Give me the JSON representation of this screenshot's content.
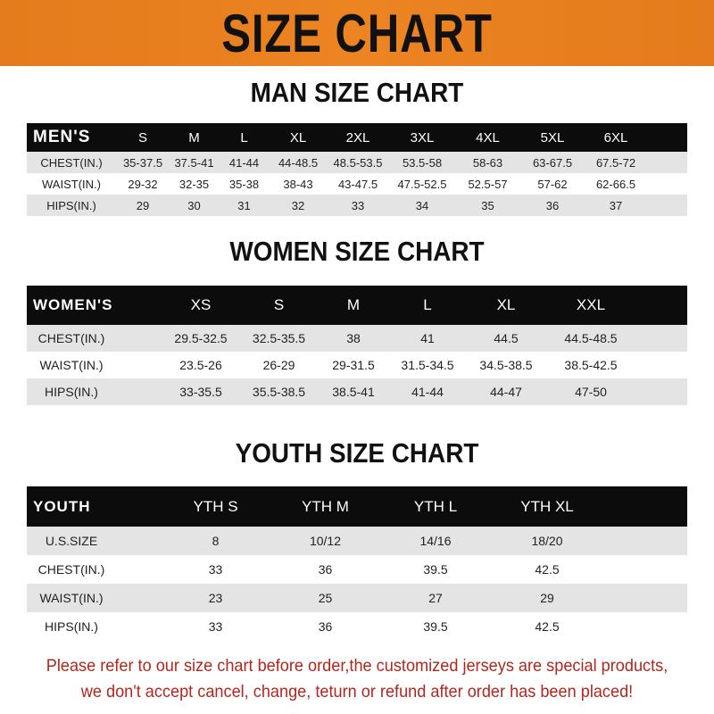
{
  "banner_title": "SIZE CHART",
  "tables": [
    {
      "id": "men",
      "title": "MAN SIZE CHART",
      "header_label": "MEN'S",
      "sizes": [
        "S",
        "M",
        "L",
        "XL",
        "2XL",
        "3XL",
        "4XL",
        "5XL",
        "6XL"
      ],
      "rows": [
        {
          "label": "CHEST(IN.)",
          "values": [
            "35-37.5",
            "37.5-41",
            "41-44",
            "44-48.5",
            "48.5-53.5",
            "53.5-58",
            "58-63",
            "63-67.5",
            "67.5-72"
          ]
        },
        {
          "label": "WAIST(IN.)",
          "values": [
            "29-32",
            "32-35",
            "35-38",
            "38-43",
            "43-47.5",
            "47.5-52.5",
            "52.5-57",
            "57-62",
            "62-66.5"
          ]
        },
        {
          "label": "HIPS(IN.)",
          "values": [
            "29",
            "30",
            "31",
            "32",
            "33",
            "34",
            "35",
            "36",
            "37"
          ]
        }
      ]
    },
    {
      "id": "women",
      "title": "WOMEN SIZE CHART",
      "header_label": "WOMEN'S",
      "sizes": [
        "XS",
        "S",
        "M",
        "L",
        "XL",
        "XXL"
      ],
      "rows": [
        {
          "label": "CHEST(IN.)",
          "values": [
            "29.5-32.5",
            "32.5-35.5",
            "38",
            "41",
            "44.5",
            "44.5-48.5"
          ]
        },
        {
          "label": "WAIST(IN.)",
          "values": [
            "23.5-26",
            "26-29",
            "29-31.5",
            "31.5-34.5",
            "34.5-38.5",
            "38.5-42.5"
          ]
        },
        {
          "label": "HIPS(IN.)",
          "values": [
            "33-35.5",
            "35.5-38.5",
            "38.5-41",
            "41-44",
            "44-47",
            "47-50"
          ]
        }
      ]
    },
    {
      "id": "youth",
      "title": "YOUTH SIZE CHART",
      "header_label": "YOUTH",
      "sizes": [
        "YTH S",
        "YTH M",
        "YTH L",
        "YTH XL"
      ],
      "rows": [
        {
          "label": "U.S.SIZE",
          "values": [
            "8",
            "10/12",
            "14/16",
            "18/20"
          ]
        },
        {
          "label": "CHEST(IN.)",
          "values": [
            "33",
            "36",
            "39.5",
            "42.5"
          ]
        },
        {
          "label": "WAIST(IN.)",
          "values": [
            "23",
            "25",
            "27",
            "29"
          ]
        },
        {
          "label": "HIPS(IN.)",
          "values": [
            "33",
            "36",
            "39.5",
            "42.5"
          ]
        }
      ]
    }
  ],
  "notice": {
    "line1": "Please refer to our size chart before order,the customized jerseys are special products,",
    "line2": "we don't accept cancel, change, teturn or refund after order has been placed!"
  },
  "colors": {
    "banner": "#ec8422",
    "header_row": "#0c0c0c",
    "stripe": "#e4e4e4",
    "notice": "#b3261e"
  }
}
